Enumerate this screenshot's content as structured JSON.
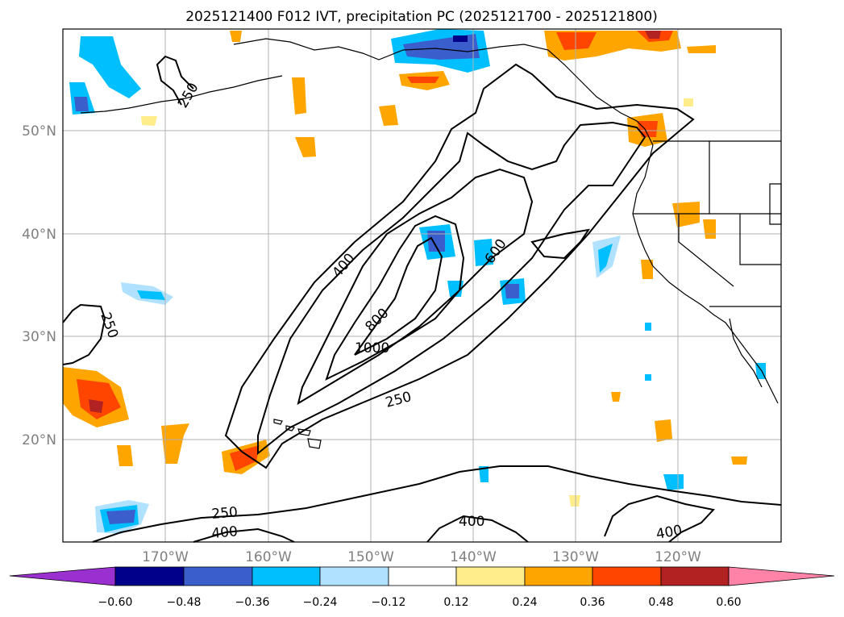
{
  "title": "2025121400 F012 IVT, precipitation PC (2025121700 - 2025121800)",
  "lat_labels": [
    "50°N",
    "40°N",
    "30°N",
    "20°N"
  ],
  "lon_labels": [
    "170°W",
    "160°W",
    "150°W",
    "140°W",
    "130°W",
    "120°W"
  ],
  "colorbar": {
    "ticks": [
      "−0.60",
      "−0.48",
      "−0.36",
      "−0.24",
      "−0.12",
      "0.12",
      "0.24",
      "0.36",
      "0.48",
      "0.60"
    ],
    "colors": [
      "#9b30d0",
      "#00008b",
      "#3a5fcd",
      "#00bfff",
      "#b0e2ff",
      "#ffffff",
      "#ffec8b",
      "#ffa500",
      "#ff4500",
      "#b22222",
      "#ff83a8"
    ]
  },
  "contour_labels": [
    "250",
    "250",
    "250",
    "250",
    "400",
    "400",
    "400",
    "400",
    "600",
    "800",
    "1000"
  ],
  "colors": {
    "grid": "#b0b0b0",
    "contour": "#000000",
    "coast": "#000000"
  }
}
